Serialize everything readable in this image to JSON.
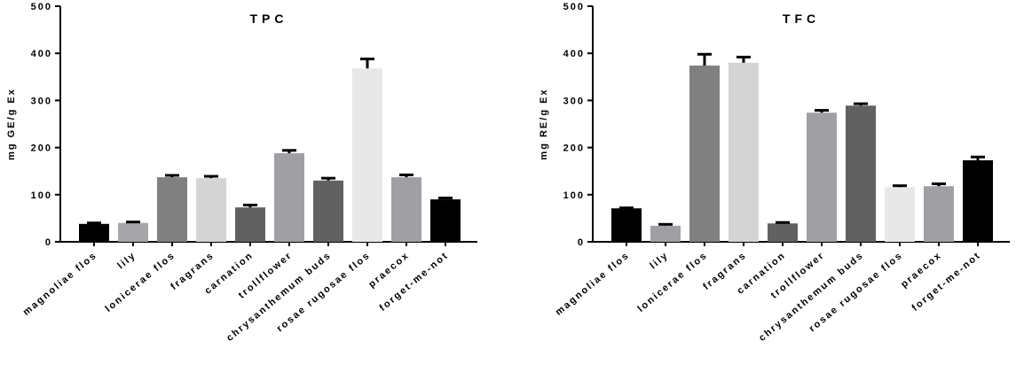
{
  "chart_data": [
    {
      "type": "bar",
      "title": "TPC",
      "y_label": "mg GE/g Ex",
      "categories": [
        "magnoliae flos",
        "lily",
        "lonicerae flos",
        "fragrans",
        "carnation",
        "trollflower",
        "chrysanthemum buds",
        "rosae rugosae flos",
        "praecox",
        "forget-me-not"
      ],
      "values": [
        38,
        40,
        137,
        135,
        73,
        188,
        130,
        368,
        137,
        90
      ],
      "errors": [
        2,
        2,
        4,
        4,
        5,
        6,
        5,
        20,
        5,
        3
      ],
      "colors": [
        "#000000",
        "#a6a6a8",
        "#808080",
        "#d4d4d4",
        "#616161",
        "#a0a0a4",
        "#616161",
        "#e8e8e8",
        "#a0a0a4",
        "#000000"
      ],
      "ylim": [
        0,
        500
      ],
      "yticks": [
        0,
        100,
        200,
        300,
        400,
        500
      ]
    },
    {
      "type": "bar",
      "title": "TFC",
      "y_label": "mg RE/g Ex",
      "categories": [
        "magnoliae flos",
        "lily",
        "lonicerae flos",
        "fragrans",
        "carnation",
        "trollflower",
        "chrysanthemum buds",
        "rosae rugosae flos",
        "praecox",
        "forget-me-not"
      ],
      "values": [
        71,
        34,
        374,
        380,
        39,
        274,
        289,
        116,
        118,
        173
      ],
      "errors": [
        1,
        3,
        24,
        12,
        2,
        5,
        4,
        3,
        5,
        7
      ],
      "colors": [
        "#000000",
        "#a0a0a4",
        "#808080",
        "#d4d4d4",
        "#616161",
        "#a0a0a4",
        "#616161",
        "#e8e8e8",
        "#a0a0a4",
        "#000000"
      ],
      "ylim": [
        0,
        500
      ],
      "yticks": [
        0,
        100,
        200,
        300,
        400,
        500
      ]
    }
  ]
}
